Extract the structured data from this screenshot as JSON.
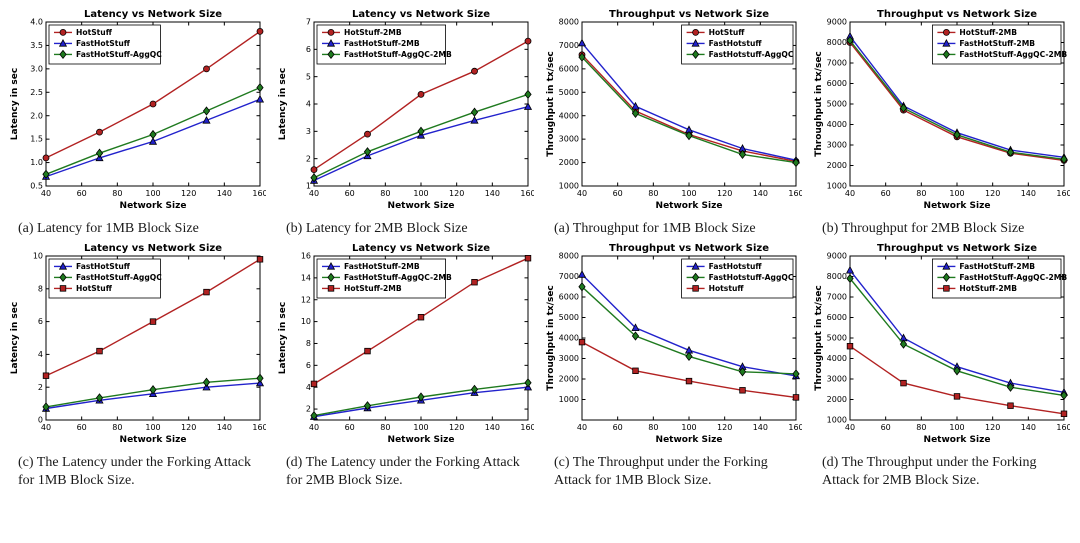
{
  "page": {
    "background": "#ffffff"
  },
  "colors": {
    "hotstuff_red": "#b22222",
    "fasthotstuff_blue": "#2222cc",
    "aggqc_green": "#1f7a1f"
  },
  "chart_data": [
    {
      "id": "latency-1mb",
      "type": "line",
      "title": "Latency vs Network Size",
      "xlabel": "Network Size",
      "ylabel": "Latency in sec",
      "caption": "(a) Latency for 1MB Block Size",
      "x": [
        40,
        70,
        100,
        130,
        160
      ],
      "xlim": [
        40,
        160
      ],
      "xticks": [
        40,
        60,
        80,
        100,
        120,
        140,
        160
      ],
      "ylim": [
        0.5,
        4.0
      ],
      "yticks": [
        0.5,
        1.0,
        1.5,
        2.0,
        2.5,
        3.0,
        3.5,
        4.0
      ],
      "ytick_labels": [
        "0.5",
        "1.0",
        "1.5",
        "2.0",
        "2.5",
        "3.0",
        "3.5",
        "4.0"
      ],
      "legend_pos": "upper-left",
      "series": [
        {
          "name": "HotStuff",
          "color": "#b22222",
          "marker": "circle",
          "values": [
            1.1,
            1.65,
            2.25,
            3.0,
            3.8
          ]
        },
        {
          "name": "FastHotStuff",
          "color": "#2222cc",
          "marker": "triangle",
          "values": [
            0.7,
            1.1,
            1.45,
            1.9,
            2.35
          ]
        },
        {
          "name": "FastHotStuff-AggQC",
          "color": "#1f7a1f",
          "marker": "diamond",
          "values": [
            0.75,
            1.2,
            1.6,
            2.1,
            2.6
          ]
        }
      ]
    },
    {
      "id": "latency-2mb",
      "type": "line",
      "title": "Latency vs Network Size",
      "xlabel": "Network Size",
      "ylabel": "Latency in sec",
      "caption": "(b) Latency for 2MB Block Size",
      "x": [
        40,
        70,
        100,
        130,
        160
      ],
      "xlim": [
        40,
        160
      ],
      "xticks": [
        40,
        60,
        80,
        100,
        120,
        140,
        160
      ],
      "ylim": [
        1,
        7
      ],
      "yticks": [
        1,
        2,
        3,
        4,
        5,
        6,
        7
      ],
      "ytick_labels": [
        "1",
        "2",
        "3",
        "4",
        "5",
        "6",
        "7"
      ],
      "legend_pos": "upper-left",
      "series": [
        {
          "name": "HotStuff-2MB",
          "color": "#b22222",
          "marker": "circle",
          "values": [
            1.6,
            2.9,
            4.35,
            5.2,
            6.3
          ]
        },
        {
          "name": "FastHotStuff-2MB",
          "color": "#2222cc",
          "marker": "triangle",
          "values": [
            1.2,
            2.1,
            2.85,
            3.4,
            3.9
          ]
        },
        {
          "name": "FastHotStuff-AggQC-2MB",
          "color": "#1f7a1f",
          "marker": "diamond",
          "values": [
            1.3,
            2.25,
            3.0,
            3.7,
            4.35
          ]
        }
      ]
    },
    {
      "id": "throughput-1mb",
      "type": "line",
      "title": "Throughput vs Network Size",
      "xlabel": "Network Size",
      "ylabel": "Throughput in tx/sec",
      "caption": "(a) Throughput for 1MB Block Size",
      "x": [
        40,
        70,
        100,
        130,
        160
      ],
      "xlim": [
        40,
        160
      ],
      "xticks": [
        40,
        60,
        80,
        100,
        120,
        140,
        160
      ],
      "ylim": [
        1000,
        8000
      ],
      "yticks": [
        1000,
        2000,
        3000,
        4000,
        5000,
        6000,
        7000,
        8000
      ],
      "ytick_labels": [
        "1000",
        "2000",
        "3000",
        "4000",
        "5000",
        "6000",
        "7000",
        "8000"
      ],
      "legend_pos": "upper-right",
      "series": [
        {
          "name": "HotStuff",
          "color": "#b22222",
          "marker": "circle",
          "values": [
            6600,
            4200,
            3200,
            2500,
            2050
          ]
        },
        {
          "name": "FastHotstuff",
          "color": "#2222cc",
          "marker": "triangle",
          "values": [
            7100,
            4400,
            3400,
            2600,
            2100
          ]
        },
        {
          "name": "FastHotstuff-AggQC",
          "color": "#1f7a1f",
          "marker": "diamond",
          "values": [
            6500,
            4100,
            3150,
            2350,
            2000
          ]
        }
      ]
    },
    {
      "id": "throughput-2mb",
      "type": "line",
      "title": "Throughput vs Network Size",
      "xlabel": "Network Size",
      "ylabel": "Throughput in tx/sec",
      "caption": "(b) Throughput for 2MB Block Size",
      "x": [
        40,
        70,
        100,
        130,
        160
      ],
      "xlim": [
        40,
        160
      ],
      "xticks": [
        40,
        60,
        80,
        100,
        120,
        140,
        160
      ],
      "ylim": [
        1000,
        9000
      ],
      "yticks": [
        1000,
        2000,
        3000,
        4000,
        5000,
        6000,
        7000,
        8000,
        9000
      ],
      "ytick_labels": [
        "1000",
        "2000",
        "3000",
        "4000",
        "5000",
        "6000",
        "7000",
        "8000",
        "9000"
      ],
      "legend_pos": "upper-right",
      "series": [
        {
          "name": "HotStuff-2MB",
          "color": "#b22222",
          "marker": "circle",
          "values": [
            8000,
            4700,
            3400,
            2600,
            2250
          ]
        },
        {
          "name": "FastHotStuff-2MB",
          "color": "#2222cc",
          "marker": "triangle",
          "values": [
            8300,
            4900,
            3600,
            2750,
            2400
          ]
        },
        {
          "name": "FastHotStuff-AggQC-2MB",
          "color": "#1f7a1f",
          "marker": "diamond",
          "values": [
            8100,
            4800,
            3500,
            2650,
            2300
          ]
        }
      ]
    },
    {
      "id": "latency-forking-1mb",
      "type": "line",
      "title": "Latency vs Network Size",
      "xlabel": "Network Size",
      "ylabel": "Latency in sec",
      "caption": "(c) The Latency under the Forking Attack for 1MB Block Size.",
      "x": [
        40,
        70,
        100,
        130,
        160
      ],
      "xlim": [
        40,
        160
      ],
      "xticks": [
        40,
        60,
        80,
        100,
        120,
        140,
        160
      ],
      "ylim": [
        0,
        10
      ],
      "yticks": [
        0,
        2,
        4,
        6,
        8,
        10
      ],
      "ytick_labels": [
        "0",
        "2",
        "4",
        "6",
        "8",
        "10"
      ],
      "legend_pos": "upper-left",
      "series": [
        {
          "name": "FastHotStuff",
          "color": "#2222cc",
          "marker": "triangle",
          "values": [
            0.7,
            1.2,
            1.6,
            2.0,
            2.25
          ]
        },
        {
          "name": "FastHotStuff-AggQC",
          "color": "#1f7a1f",
          "marker": "diamond",
          "values": [
            0.8,
            1.35,
            1.85,
            2.3,
            2.55
          ]
        },
        {
          "name": "HotStuff",
          "color": "#b22222",
          "marker": "square",
          "values": [
            2.7,
            4.2,
            6.0,
            7.8,
            9.8
          ]
        }
      ]
    },
    {
      "id": "latency-forking-2mb",
      "type": "line",
      "title": "Latency vs Network Size",
      "xlabel": "Network Size",
      "ylabel": "Latency in sec",
      "caption": "(d) The Latency under the Forking Attack for 2MB Block Size.",
      "x": [
        40,
        70,
        100,
        130,
        160
      ],
      "xlim": [
        40,
        160
      ],
      "xticks": [
        40,
        60,
        80,
        100,
        120,
        140,
        160
      ],
      "ylim": [
        1,
        16
      ],
      "yticks": [
        2,
        4,
        6,
        8,
        10,
        12,
        14,
        16
      ],
      "ytick_labels": [
        "2",
        "4",
        "6",
        "8",
        "10",
        "12",
        "14",
        "16"
      ],
      "legend_pos": "upper-left",
      "series": [
        {
          "name": "FastHotStuff-2MB",
          "color": "#2222cc",
          "marker": "triangle",
          "values": [
            1.3,
            2.1,
            2.8,
            3.5,
            4.0
          ]
        },
        {
          "name": "FastHotStuff-AggQC-2MB",
          "color": "#1f7a1f",
          "marker": "diamond",
          "values": [
            1.4,
            2.3,
            3.1,
            3.8,
            4.4
          ]
        },
        {
          "name": "HotStuff-2MB",
          "color": "#b22222",
          "marker": "square",
          "values": [
            4.3,
            7.3,
            10.4,
            13.6,
            15.8
          ]
        }
      ]
    },
    {
      "id": "throughput-forking-1mb",
      "type": "line",
      "title": "Throughput vs Network Size",
      "xlabel": "Network Size",
      "ylabel": "Throughput in tx/sec",
      "caption": "(c) The Throughput under the Forking Attack for 1MB Block Size.",
      "x": [
        40,
        70,
        100,
        130,
        160
      ],
      "xlim": [
        40,
        160
      ],
      "xticks": [
        40,
        60,
        80,
        100,
        120,
        140,
        160
      ],
      "ylim": [
        0,
        8000
      ],
      "yticks": [
        1000,
        2000,
        3000,
        4000,
        5000,
        6000,
        7000,
        8000
      ],
      "ytick_labels": [
        "1000",
        "2000",
        "3000",
        "4000",
        "5000",
        "6000",
        "7000",
        "8000"
      ],
      "legend_pos": "upper-right",
      "series": [
        {
          "name": "FastHotstuff",
          "color": "#2222cc",
          "marker": "triangle",
          "values": [
            7100,
            4500,
            3400,
            2600,
            2150
          ]
        },
        {
          "name": "FastHotstuff-AggQC",
          "color": "#1f7a1f",
          "marker": "diamond",
          "values": [
            6500,
            4100,
            3100,
            2350,
            2250
          ]
        },
        {
          "name": "Hotstuff",
          "color": "#b22222",
          "marker": "square",
          "values": [
            3800,
            2400,
            1900,
            1450,
            1100
          ]
        }
      ]
    },
    {
      "id": "throughput-forking-2mb",
      "type": "line",
      "title": "Throughput vs Network Size",
      "xlabel": "Network Size",
      "ylabel": "Throughput in tx/sec",
      "caption": "(d) The Throughput under the Forking Attack for 2MB Block Size.",
      "x": [
        40,
        70,
        100,
        130,
        160
      ],
      "xlim": [
        40,
        160
      ],
      "xticks": [
        40,
        60,
        80,
        100,
        120,
        140,
        160
      ],
      "ylim": [
        1000,
        9000
      ],
      "yticks": [
        1000,
        2000,
        3000,
        4000,
        5000,
        6000,
        7000,
        8000,
        9000
      ],
      "ytick_labels": [
        "1000",
        "2000",
        "3000",
        "4000",
        "5000",
        "6000",
        "7000",
        "8000",
        "9000"
      ],
      "legend_pos": "upper-right",
      "series": [
        {
          "name": "FastHotStuff-2MB",
          "color": "#2222cc",
          "marker": "triangle",
          "values": [
            8300,
            5000,
            3600,
            2800,
            2350
          ]
        },
        {
          "name": "FastHotStuff-AggQC-2MB",
          "color": "#1f7a1f",
          "marker": "diamond",
          "values": [
            7900,
            4700,
            3400,
            2600,
            2200
          ]
        },
        {
          "name": "HotStuff-2MB",
          "color": "#b22222",
          "marker": "square",
          "values": [
            4600,
            2800,
            2150,
            1700,
            1300
          ]
        }
      ]
    }
  ]
}
